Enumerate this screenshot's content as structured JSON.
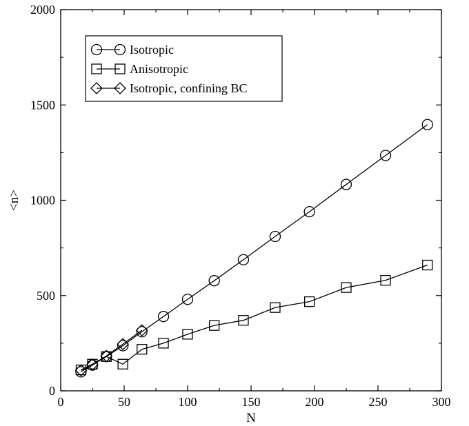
{
  "chart_data": {
    "type": "line",
    "title": "",
    "xlabel": "N",
    "ylabel": "<n>",
    "xlim": [
      0,
      300
    ],
    "ylim": [
      0,
      2000
    ],
    "xticks": [
      0,
      50,
      100,
      150,
      200,
      250,
      300
    ],
    "yticks": [
      0,
      500,
      1000,
      1500,
      2000
    ],
    "grid": false,
    "legend_position": "top-left",
    "series": [
      {
        "name": "Isotropic",
        "marker": "circle",
        "x": [
          16,
          25,
          36,
          49,
          64,
          81,
          100,
          121,
          144,
          169,
          196,
          225,
          256,
          289
        ],
        "y": [
          100,
          135,
          180,
          237,
          310,
          390,
          480,
          578,
          688,
          810,
          940,
          1083,
          1235,
          1397
        ]
      },
      {
        "name": "Anisotropic",
        "marker": "square",
        "x": [
          16,
          25,
          36,
          49,
          64,
          81,
          100,
          121,
          144,
          169,
          196,
          225,
          256,
          289
        ],
        "y": [
          110,
          140,
          180,
          140,
          218,
          250,
          297,
          343,
          370,
          437,
          468,
          542,
          580,
          660
        ]
      },
      {
        "name": "Isotropic, confining BC",
        "marker": "diamond",
        "x": [
          16,
          25,
          36,
          49,
          64
        ],
        "y": [
          108,
          138,
          183,
          245,
          318
        ]
      }
    ]
  }
}
